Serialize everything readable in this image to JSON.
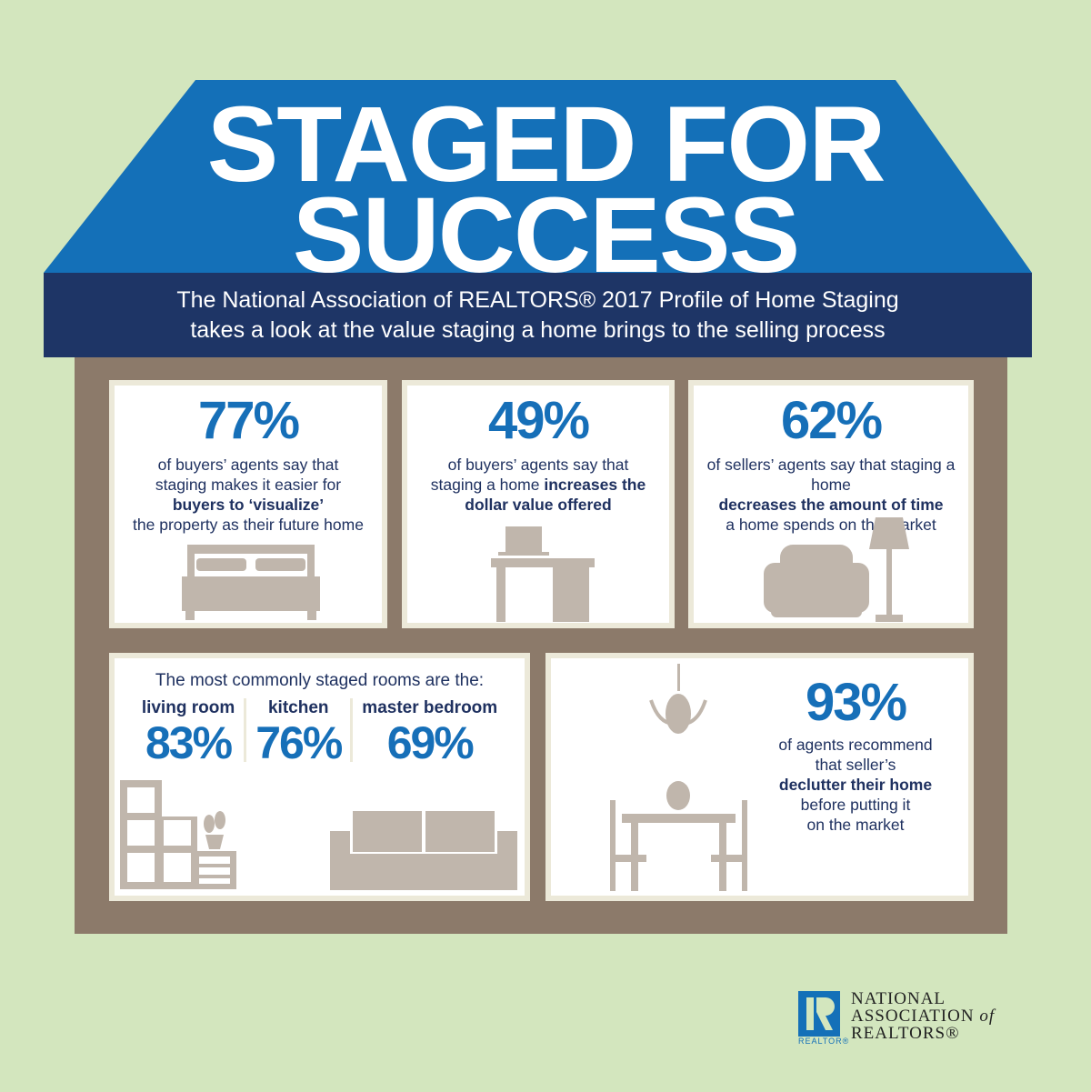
{
  "header": {
    "title_line1": "STAGED FOR",
    "title_line2": "SUCCESS",
    "subtitle_line1": "The National Association of REALTORS® 2017 Profile of Home Staging",
    "subtitle_line2": "takes a look at the value staging a home brings to the selling process"
  },
  "stats": [
    {
      "percent": "77%",
      "text1": "of buyers’ agents say that",
      "text2": "staging makes it easier for",
      "bold": "buyers to ‘visualize’",
      "text3": "the property as their future home",
      "icon": "bed-icon"
    },
    {
      "percent": "49%",
      "text1": "of buyers’ agents say that",
      "text2": "staging a home ",
      "bold": "increases the",
      "bold2": "dollar value offered",
      "icon": "desk-icon"
    },
    {
      "percent": "62%",
      "text1": "of sellers’ agents say that staging a home",
      "bold": "decreases the amount of time",
      "text3": "a home spends on the market",
      "icon": "armchair-lamp-icon"
    }
  ],
  "rooms": {
    "heading": "The most commonly staged rooms are the:",
    "items": [
      {
        "label": "living room",
        "percent": "83%"
      },
      {
        "label": "kitchen",
        "percent": "76%"
      },
      {
        "label": "master bedroom",
        "percent": "69%"
      }
    ]
  },
  "declutter": {
    "percent": "93%",
    "line1": "of agents recommend",
    "line2": "that seller’s",
    "bold": "declutter their home",
    "line3": "before putting it",
    "line4": "on the market"
  },
  "logo": {
    "org_line1": "NATIONAL",
    "org_line2": "ASSOCIATION",
    "org_of": "of",
    "org_line3": "REALTORS®",
    "badge": "REALTOR®"
  },
  "colors": {
    "background": "#d3e6be",
    "roof": "#1470b8",
    "banner": "#1e3566",
    "house": "#8c7a6a",
    "accent": "#166fb8",
    "text": "#1f3160"
  }
}
